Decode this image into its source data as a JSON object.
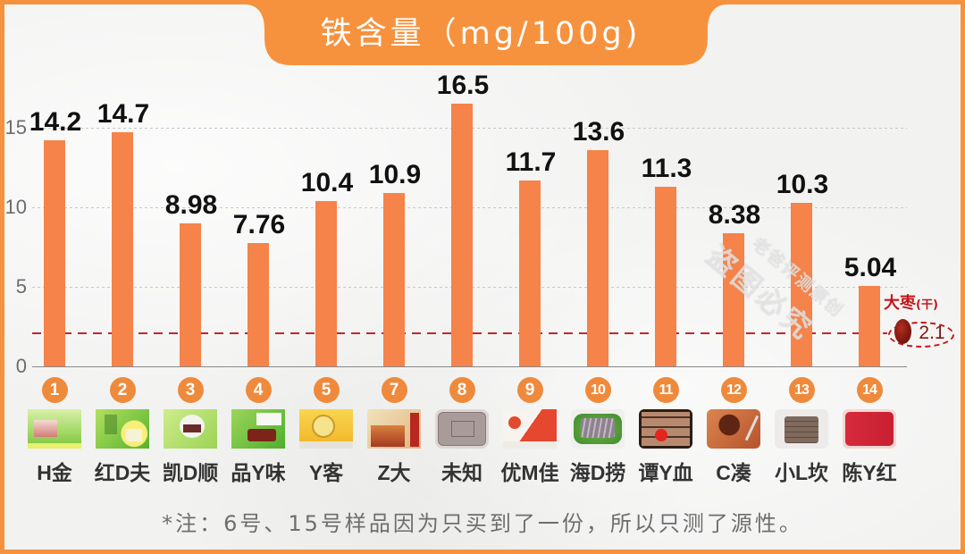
{
  "title": "铁含量（mg/100g)",
  "chart_data": {
    "type": "bar",
    "title": "铁含量（mg/100g)",
    "xlabel": "",
    "ylabel": "",
    "categories": [
      "H金",
      "红D夫",
      "凯D顺",
      "品Y味",
      "Y客",
      "Z大",
      "未知",
      "优M佳",
      "海D捞",
      "谭Y血",
      "C凑",
      "小L坎",
      "陈Y红"
    ],
    "sample_numbers": [
      "1",
      "2",
      "3",
      "4",
      "5",
      "7",
      "8",
      "9",
      "10",
      "11",
      "12",
      "13",
      "14"
    ],
    "values": [
      14.2,
      14.7,
      8.98,
      7.76,
      10.4,
      10.9,
      16.5,
      11.7,
      13.6,
      11.3,
      8.38,
      10.3,
      5.04
    ],
    "value_labels": [
      "14.2",
      "14.7",
      "8.98",
      "7.76",
      "10.4",
      "10.9",
      "16.5",
      "11.7",
      "13.6",
      "11.3",
      "8.38",
      "10.3",
      "5.04"
    ],
    "ylim": [
      0,
      18
    ],
    "yticks": [
      0,
      5,
      10,
      15
    ],
    "ytick_labels": [
      "0",
      "5",
      "10",
      "15"
    ],
    "grid": true,
    "legend": null,
    "reference_line": {
      "label": "大枣",
      "sublabel": "(干)",
      "value": 2.1,
      "value_label": "2.1",
      "style": "dashed",
      "color": "#C1272D"
    },
    "bar_color": "#F5834A"
  },
  "products": [
    {
      "number": "1",
      "name": "H金",
      "thumb": "green-package"
    },
    {
      "number": "2",
      "name": "红D夫",
      "thumb": "green-package-yellow-face"
    },
    {
      "number": "3",
      "name": "凯D顺",
      "thumb": "light-green-package"
    },
    {
      "number": "4",
      "name": "品Y味",
      "thumb": "green-package-red-block"
    },
    {
      "number": "5",
      "name": "Y客",
      "thumb": "yellow-package"
    },
    {
      "number": "7",
      "name": "Z大",
      "thumb": "beige-package"
    },
    {
      "number": "8",
      "name": "未知",
      "thumb": "gray-tray"
    },
    {
      "number": "9",
      "name": "优M佳",
      "thumb": "white-red-package"
    },
    {
      "number": "10",
      "name": "海D捞",
      "thumb": "sliced-on-lettuce"
    },
    {
      "number": "11",
      "name": "谭Y血",
      "thumb": "brown-blocks"
    },
    {
      "number": "12",
      "name": "C凑",
      "thumb": "cooked-dish"
    },
    {
      "number": "13",
      "name": "小L坎",
      "thumb": "stacked-slices"
    },
    {
      "number": "14",
      "name": "陈Y红",
      "thumb": "red-tray"
    }
  ],
  "footnote": "*注：6号、15号样品因为只买到了一份，所以只测了源性。",
  "watermark": {
    "line1": "老爸评测原创",
    "line2": "盗图必究"
  },
  "colors": {
    "frame": "#F6923E",
    "bar": "#F5834A",
    "badge": "#EF8A3C",
    "reference": "#C1272D",
    "background": "#F2F2F1"
  }
}
